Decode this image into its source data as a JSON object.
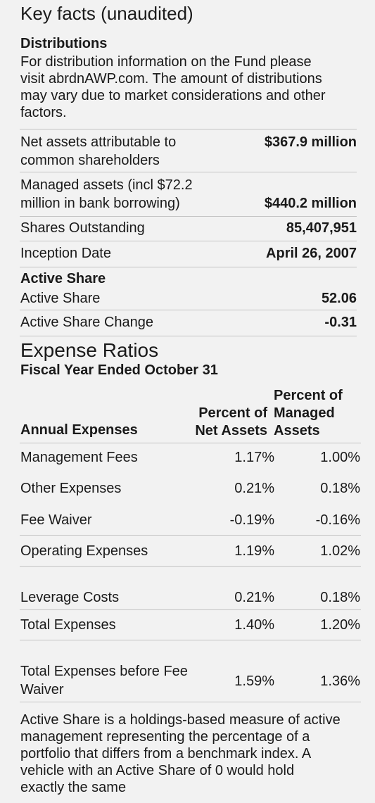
{
  "title": "Key facts (unaudited)",
  "distributions": {
    "heading": "Distributions",
    "text": "For distribution information on the Fund please visit abrdnAWP.com. The amount of distributions may vary due to market considerations and other factors."
  },
  "facts": [
    {
      "label": "Net assets attributable to common shareholders",
      "value": "$367.9 million"
    },
    {
      "label": "Managed assets (incl $72.2 million in bank borrowing)",
      "value": "$440.2 million"
    },
    {
      "label": "Shares Outstanding",
      "value": "85,407,951"
    },
    {
      "label": "Inception Date",
      "value": "April 26, 2007"
    }
  ],
  "active_share": {
    "heading": "Active Share",
    "rows": [
      {
        "label": "Active Share",
        "value": "52.06"
      },
      {
        "label": "Active Share Change",
        "value": "-0.31"
      }
    ]
  },
  "expense": {
    "title": "Expense Ratios",
    "subtitle": "Fiscal Year Ended October 31",
    "col_label": "Annual Expenses",
    "col_net": "Percent of Net Assets",
    "col_managed": "Percent of Managed Assets",
    "rows": [
      {
        "label": "Management Fees",
        "net": "1.17%",
        "managed": "1.00%"
      },
      {
        "label": "Other Expenses",
        "net": "0.21%",
        "managed": "0.18%"
      },
      {
        "label": "Fee Waiver",
        "net": "-0.19%",
        "managed": "-0.16%"
      },
      {
        "label": "Operating Expenses",
        "net": "1.19%",
        "managed": "1.02%"
      },
      {
        "label": "Leverage Costs",
        "net": "0.21%",
        "managed": "0.18%"
      },
      {
        "label": "Total Expenses",
        "net": "1.40%",
        "managed": "1.20%"
      },
      {
        "label": "Total Expenses before Fee Waiver",
        "net": "1.59%",
        "managed": "1.36%"
      }
    ]
  },
  "footer_text": "Active Share is a holdings-based measure of active management representing the percentage of a portfolio that differs from a benchmark index. A vehicle with an Active Share of 0 would hold exactly the same"
}
